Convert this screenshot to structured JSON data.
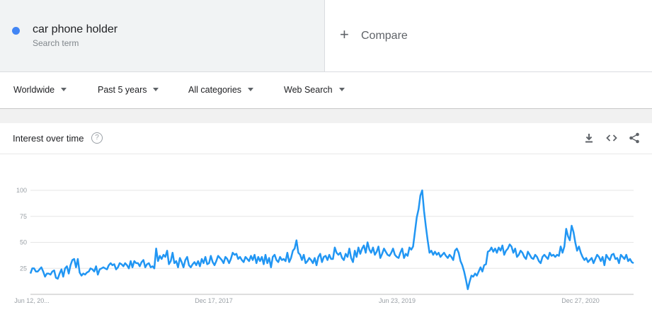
{
  "search_term": {
    "name": "car phone holder",
    "subtitle": "Search term",
    "color": "#4285f4"
  },
  "compare": {
    "icon": "plus-icon",
    "label": "Compare"
  },
  "filters": [
    {
      "label": "Worldwide"
    },
    {
      "label": "Past 5 years"
    },
    {
      "label": "All categories"
    },
    {
      "label": "Web Search"
    }
  ],
  "card": {
    "title": "Interest over time",
    "help_icon": "help-circle-icon",
    "tools": [
      "download-icon",
      "embed-code-icon",
      "share-icon"
    ]
  },
  "chart_data": {
    "type": "line",
    "title": "",
    "xlabel": "",
    "ylabel": "",
    "ylim": [
      0,
      100
    ],
    "yticks": [
      "25",
      "50",
      "75",
      "100"
    ],
    "xtick_labels": [
      "Jun 12, 20...",
      "Dec 17, 2017",
      "Jun 23, 2019",
      "Dec 27, 2020"
    ],
    "grid": true,
    "series": [
      {
        "color": "#2196f3",
        "values": [
          20,
          25,
          25,
          22,
          22,
          24,
          26,
          22,
          17,
          20,
          20,
          19,
          22,
          23,
          16,
          15,
          20,
          24,
          17,
          25,
          27,
          20,
          28,
          33,
          34,
          26,
          34,
          21,
          18,
          20,
          19,
          21,
          22,
          25,
          24,
          22,
          27,
          19,
          24,
          25,
          26,
          25,
          24,
          28,
          30,
          28,
          29,
          24,
          26,
          30,
          29,
          27,
          30,
          28,
          25,
          32,
          26,
          32,
          30,
          30,
          27,
          31,
          33,
          26,
          29,
          30,
          26,
          27,
          25,
          44,
          32,
          37,
          34,
          38,
          36,
          42,
          29,
          32,
          40,
          30,
          32,
          26,
          35,
          31,
          26,
          33,
          36,
          28,
          26,
          29,
          31,
          28,
          32,
          27,
          34,
          30,
          36,
          29,
          30,
          37,
          31,
          28,
          32,
          37,
          35,
          33,
          30,
          36,
          34,
          30,
          34,
          40,
          38,
          39,
          34,
          36,
          33,
          31,
          36,
          34,
          32,
          37,
          33,
          38,
          30,
          36,
          32,
          36,
          29,
          38,
          30,
          35,
          26,
          36,
          38,
          33,
          31,
          36,
          33,
          34,
          32,
          40,
          31,
          35,
          42,
          44,
          52,
          40,
          38,
          33,
          38,
          30,
          32,
          35,
          33,
          30,
          35,
          28,
          36,
          39,
          31,
          36,
          37,
          33,
          38,
          34,
          34,
          45,
          40,
          38,
          40,
          35,
          33,
          39,
          36,
          44,
          35,
          31,
          42,
          36,
          45,
          39,
          44,
          47,
          40,
          50,
          43,
          40,
          45,
          38,
          41,
          46,
          35,
          39,
          44,
          41,
          38,
          37,
          40,
          44,
          38,
          36,
          35,
          40,
          44,
          35,
          39,
          37,
          45,
          43,
          46,
          60,
          74,
          82,
          95,
          100,
          80,
          65,
          52,
          40,
          42,
          38,
          41,
          38,
          40,
          36,
          38,
          40,
          37,
          35,
          38,
          36,
          33,
          42,
          44,
          40,
          32,
          28,
          22,
          14,
          5,
          12,
          18,
          17,
          20,
          18,
          22,
          26,
          22,
          28,
          29,
          41,
          42,
          45,
          41,
          44,
          40,
          45,
          42,
          47,
          38,
          42,
          44,
          48,
          46,
          40,
          44,
          36,
          38,
          42,
          40,
          36,
          34,
          41,
          38,
          35,
          34,
          38,
          36,
          32,
          30,
          36,
          38,
          36,
          34,
          40,
          37,
          38,
          36,
          38,
          37,
          46,
          40,
          46,
          63,
          56,
          52,
          66,
          60,
          50,
          42,
          46,
          40,
          36,
          33,
          35,
          31,
          33,
          35,
          30,
          34,
          38,
          36,
          32,
          36,
          28,
          38,
          35,
          33,
          38,
          39,
          34,
          35,
          30,
          38,
          36,
          34,
          38,
          32,
          34,
          31,
          30
        ]
      }
    ]
  }
}
